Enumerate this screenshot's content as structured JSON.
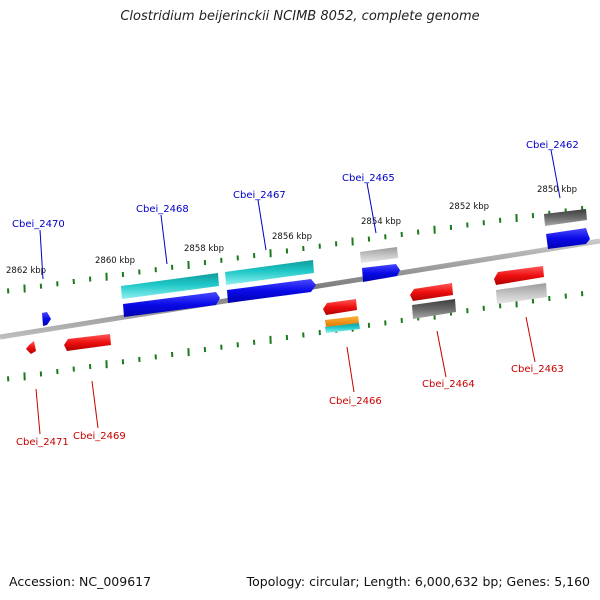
{
  "title": "Clostridium beijerinckii NCIMB 8052, complete genome",
  "footer": {
    "accession": "Accession: NC_009617",
    "summary": "Topology: circular; Length: 6,000,632 bp; Genes: 5,160"
  },
  "scale_labels": [
    "2862 kbp",
    "2860 kbp",
    "2858 kbp",
    "2856 kbp",
    "2854 kbp",
    "2852 kbp",
    "2850 kbp"
  ],
  "gene_labels": [
    {
      "text": "Cbei_2462",
      "color": "#0000c8"
    },
    {
      "text": "Cbei_2465",
      "color": "#0000c8"
    },
    {
      "text": "Cbei_2467",
      "color": "#0000c8"
    },
    {
      "text": "Cbei_2468",
      "color": "#0000c8"
    },
    {
      "text": "Cbei_2470",
      "color": "#0000c8"
    },
    {
      "text": "Cbei_2463",
      "color": "#c80000"
    },
    {
      "text": "Cbei_2464",
      "color": "#c80000"
    },
    {
      "text": "Cbei_2466",
      "color": "#c80000"
    },
    {
      "text": "Cbei_2469",
      "color": "#c80000"
    },
    {
      "text": "Cbei_2471",
      "color": "#c80000"
    }
  ],
  "colors": {
    "blue_gene": "#1010e8",
    "red_gene": "#ee1010",
    "cyan_gene": "#20c8c8",
    "gray_gene": "#b8b8b8",
    "dark_gene": "#606060",
    "orange_gene": "#ff9a00",
    "tick": "#1a7a1a",
    "backbone": "#8a8a8a"
  }
}
